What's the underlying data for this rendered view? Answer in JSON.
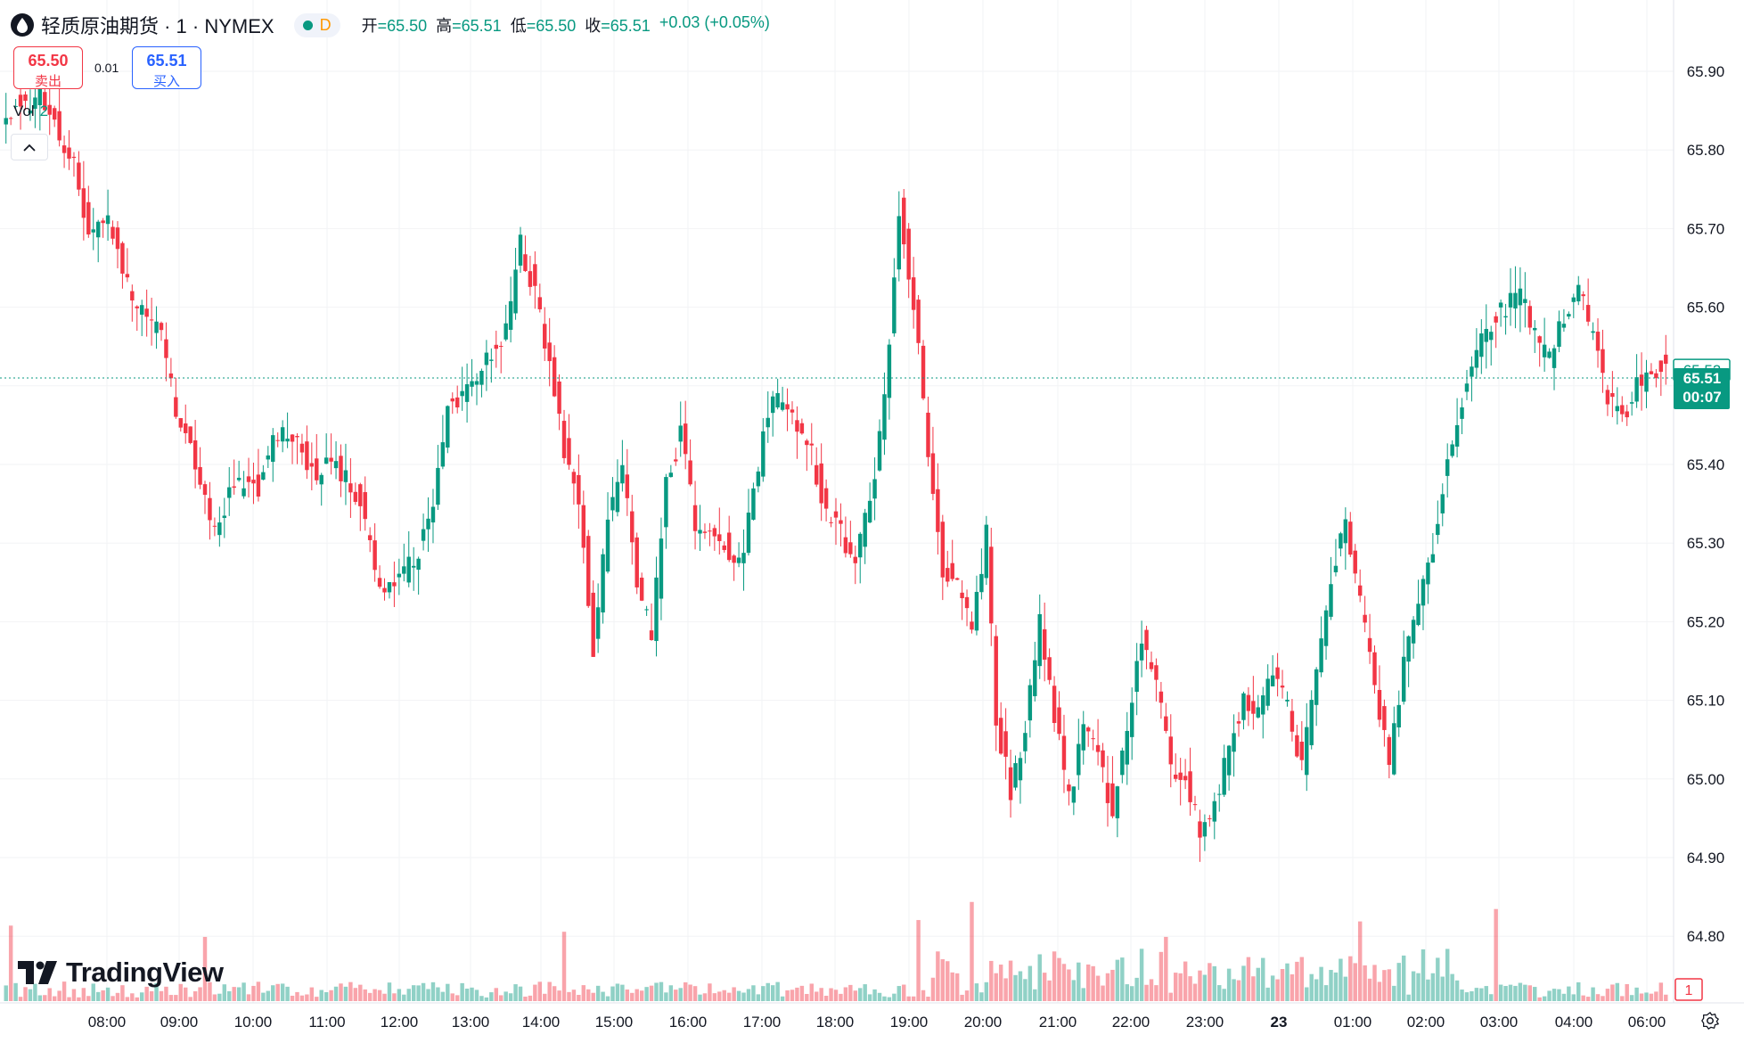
{
  "header": {
    "symbol": "轻质原油期货 · 1 · NYMEX",
    "interval_badge": "D",
    "ohlc": [
      {
        "key": "开",
        "value": "=65.50"
      },
      {
        "key": "高",
        "value": "=65.51"
      },
      {
        "key": "低",
        "value": "=65.50"
      },
      {
        "key": "收",
        "value": "=65.51"
      }
    ],
    "change": "+0.03 (+0.05%)"
  },
  "trade": {
    "sell_price": "65.50",
    "sell_label": "卖出",
    "spread": "0.01",
    "buy_price": "65.51",
    "buy_label": "买入"
  },
  "volume_pane": {
    "label": "Vol",
    "value": "2",
    "last_bar_value": "1"
  },
  "branding": {
    "logo_text": "TradingView"
  },
  "colors": {
    "up": "#089981",
    "down": "#f23645",
    "accent": "#2962ff",
    "price_tag": "#089981",
    "grid": "#f2f3f5"
  },
  "icons": [
    "drop-logo-icon",
    "chevron-up-icon",
    "tradingview-logo-icon",
    "gear-icon"
  ],
  "chart_data": {
    "type": "candlestick",
    "y_ticks": [
      "65.90",
      "65.80",
      "65.70",
      "65.60",
      "65.50",
      "65.40",
      "65.30",
      "65.20",
      "65.10",
      "65.00",
      "64.90",
      "64.80"
    ],
    "y_range": [
      64.76,
      65.98
    ],
    "x_ticks": [
      "08:00",
      "09:00",
      "10:00",
      "11:00",
      "12:00",
      "13:00",
      "14:00",
      "15:00",
      "16:00",
      "17:00",
      "18:00",
      "19:00",
      "20:00",
      "21:00",
      "22:00",
      "23:00",
      "23",
      "01:00",
      "02:00",
      "03:00",
      "04:00",
      "06:00"
    ],
    "bid_line": 65.52,
    "last_price": {
      "price": "65.51",
      "countdown": "00:07"
    },
    "price_path": [
      [
        0,
        65.83
      ],
      [
        3,
        65.86
      ],
      [
        6,
        65.85
      ],
      [
        8,
        65.88
      ],
      [
        10,
        65.85
      ],
      [
        12,
        65.82
      ],
      [
        15,
        65.78
      ],
      [
        18,
        65.69
      ],
      [
        21,
        65.72
      ],
      [
        24,
        65.67
      ],
      [
        27,
        65.61
      ],
      [
        30,
        65.59
      ],
      [
        33,
        65.56
      ],
      [
        36,
        65.47
      ],
      [
        39,
        65.43
      ],
      [
        42,
        65.35
      ],
      [
        44,
        65.32
      ],
      [
        47,
        65.36
      ],
      [
        50,
        65.38
      ],
      [
        53,
        65.37
      ],
      [
        56,
        65.44
      ],
      [
        59,
        65.43
      ],
      [
        62,
        65.42
      ],
      [
        65,
        65.38
      ],
      [
        68,
        65.41
      ],
      [
        71,
        65.38
      ],
      [
        74,
        65.35
      ],
      [
        77,
        65.26
      ],
      [
        80,
        65.24
      ],
      [
        83,
        65.26
      ],
      [
        86,
        65.29
      ],
      [
        89,
        65.34
      ],
      [
        92,
        65.47
      ],
      [
        95,
        65.49
      ],
      [
        98,
        65.51
      ],
      [
        101,
        65.54
      ],
      [
        104,
        65.57
      ],
      [
        107,
        65.68
      ],
      [
        110,
        65.62
      ],
      [
        113,
        65.53
      ],
      [
        116,
        65.42
      ],
      [
        119,
        65.36
      ],
      [
        122,
        65.17
      ],
      [
        125,
        65.33
      ],
      [
        128,
        65.39
      ],
      [
        131,
        65.25
      ],
      [
        134,
        65.18
      ],
      [
        137,
        65.37
      ],
      [
        140,
        65.44
      ],
      [
        143,
        65.32
      ],
      [
        146,
        65.33
      ],
      [
        149,
        65.3
      ],
      [
        152,
        65.27
      ],
      [
        155,
        65.36
      ],
      [
        158,
        65.47
      ],
      [
        161,
        65.49
      ],
      [
        164,
        65.45
      ],
      [
        167,
        65.41
      ],
      [
        170,
        65.34
      ],
      [
        173,
        65.31
      ],
      [
        176,
        65.28
      ],
      [
        179,
        65.35
      ],
      [
        182,
        65.48
      ],
      [
        185,
        65.73
      ],
      [
        188,
        65.6
      ],
      [
        191,
        65.42
      ],
      [
        194,
        65.27
      ],
      [
        197,
        65.24
      ],
      [
        200,
        65.19
      ],
      [
        203,
        65.31
      ],
      [
        205,
        65.08
      ],
      [
        208,
        64.98
      ],
      [
        211,
        65.07
      ],
      [
        214,
        65.2
      ],
      [
        217,
        65.08
      ],
      [
        220,
        64.97
      ],
      [
        223,
        65.07
      ],
      [
        226,
        65.03
      ],
      [
        229,
        64.96
      ],
      [
        232,
        65.06
      ],
      [
        235,
        65.18
      ],
      [
        238,
        65.12
      ],
      [
        241,
        65.01
      ],
      [
        244,
        65.0
      ],
      [
        247,
        64.93
      ],
      [
        250,
        64.97
      ],
      [
        253,
        65.04
      ],
      [
        256,
        65.1
      ],
      [
        259,
        65.08
      ],
      [
        262,
        65.14
      ],
      [
        265,
        65.09
      ],
      [
        268,
        65.01
      ],
      [
        271,
        65.14
      ],
      [
        274,
        65.25
      ],
      [
        277,
        65.34
      ],
      [
        280,
        65.22
      ],
      [
        283,
        65.12
      ],
      [
        286,
        65.02
      ],
      [
        289,
        65.15
      ],
      [
        292,
        65.23
      ],
      [
        295,
        65.3
      ],
      [
        298,
        65.41
      ],
      [
        301,
        65.48
      ],
      [
        304,
        65.54
      ],
      [
        307,
        65.58
      ],
      [
        310,
        65.6
      ],
      [
        313,
        65.62
      ],
      [
        316,
        65.56
      ],
      [
        319,
        65.53
      ],
      [
        322,
        65.59
      ],
      [
        325,
        65.62
      ],
      [
        328,
        65.56
      ],
      [
        331,
        65.48
      ],
      [
        334,
        65.46
      ],
      [
        337,
        65.5
      ],
      [
        340,
        65.52
      ],
      [
        343,
        65.53
      ]
    ]
  }
}
